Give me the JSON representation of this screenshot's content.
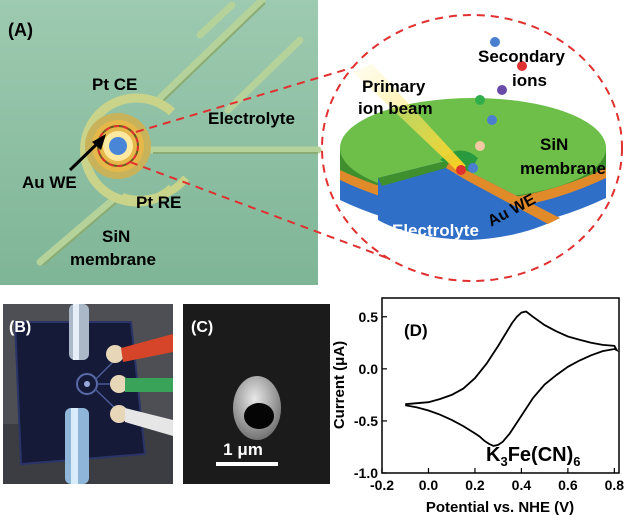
{
  "panelA": {
    "tag": "(A)",
    "labels": {
      "pt_ce": "Pt CE",
      "electrolyte": "Electrolyte",
      "au_we": "Au WE",
      "pt_re": "Pt RE",
      "sin_line1": "SiN",
      "sin_line2": "membrane"
    },
    "inset": {
      "secondary_line1": "Secondary",
      "secondary_line2": "ions",
      "primary_line1": "Primary",
      "primary_line2": "ion beam",
      "sin_line1": "SiN",
      "sin_line2": "membrane",
      "electrolyte": "Electrolyte",
      "au_we": "Au WE"
    },
    "colors": {
      "background": "#8fc3a6",
      "sin_top": "#6dbf4a",
      "sin_side": "#3f8f2e",
      "gold": "#e08a2a",
      "electrolyte": "#2f6fc8",
      "dashed": "#e03030"
    }
  },
  "panelB": {
    "tag": "(B)"
  },
  "panelC": {
    "tag": "(C)",
    "scale_label": "1 μm"
  },
  "panelD": {
    "tag": "(D)",
    "formula_main": "K",
    "formula_sub1": "3",
    "formula_mid": "Fe(CN)",
    "formula_sub2": "6"
  },
  "chart_data": {
    "type": "line",
    "xlabel": "Potential vs. NHE (V)",
    "ylabel": "Current (μA)",
    "xlim": [
      -0.2,
      0.82
    ],
    "ylim": [
      -1.0,
      0.68
    ],
    "xticks": [
      "-0.2",
      "0.0",
      "0.2",
      "0.4",
      "0.6",
      "0.8"
    ],
    "yticks": [
      "0.5",
      "0.0",
      "-0.5",
      "-1.0"
    ],
    "grid": false,
    "series": [
      {
        "x": [
          -0.1,
          -0.05,
          0.0,
          0.05,
          0.1,
          0.15,
          0.2,
          0.25,
          0.3,
          0.33,
          0.36,
          0.38,
          0.4,
          0.42,
          0.45,
          0.5,
          0.55,
          0.6,
          0.65,
          0.7,
          0.75,
          0.8,
          0.81,
          0.8,
          0.75,
          0.7,
          0.65,
          0.6,
          0.55,
          0.5,
          0.45,
          0.4,
          0.35,
          0.32,
          0.3,
          0.28,
          0.26,
          0.24,
          0.22,
          0.2,
          0.15,
          0.1,
          0.05,
          0.0,
          -0.05,
          -0.1
        ],
        "y": [
          -0.34,
          -0.33,
          -0.32,
          -0.29,
          -0.25,
          -0.19,
          -0.09,
          0.05,
          0.22,
          0.33,
          0.44,
          0.5,
          0.54,
          0.55,
          0.5,
          0.42,
          0.36,
          0.31,
          0.28,
          0.25,
          0.23,
          0.22,
          0.18,
          0.19,
          0.17,
          0.13,
          0.08,
          0.02,
          -0.06,
          -0.15,
          -0.28,
          -0.45,
          -0.62,
          -0.7,
          -0.73,
          -0.74,
          -0.72,
          -0.69,
          -0.65,
          -0.62,
          -0.55,
          -0.49,
          -0.44,
          -0.4,
          -0.37,
          -0.35
        ]
      }
    ]
  }
}
